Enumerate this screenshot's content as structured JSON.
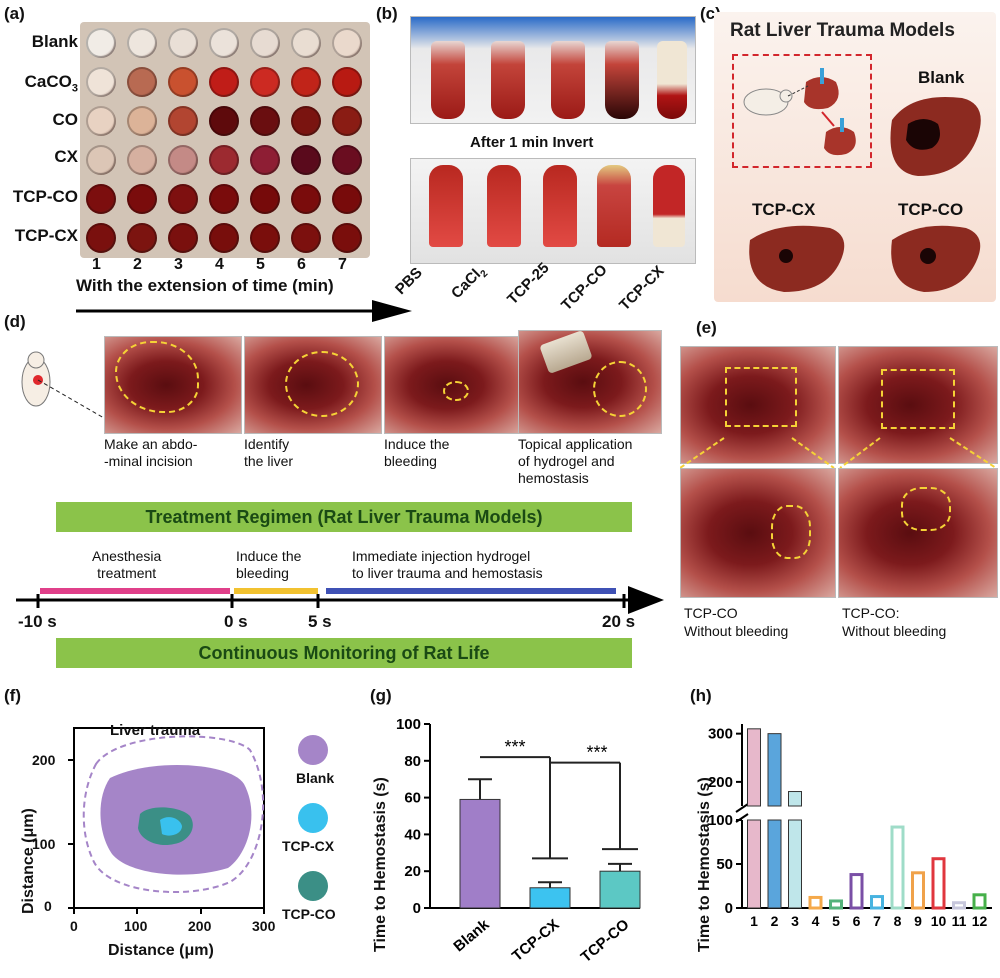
{
  "panel_a": {
    "label": "(a)",
    "row_labels": [
      "Blank",
      "CaCO",
      "CO",
      "CX",
      "TCP-CO",
      "TCP-CX"
    ],
    "subscript_3": "3",
    "column_numbers": [
      "1",
      "2",
      "3",
      "4",
      "5",
      "6",
      "7"
    ],
    "axis_caption": "With the extension of time (min)",
    "well_colors": [
      [
        "#f1ece6",
        "#eee6de",
        "#e9dfd6",
        "#ebe2da",
        "#e7dbd2",
        "#e9ddd2",
        "#ead9cc"
      ],
      [
        "#efe3d8",
        "#b86a52",
        "#c9512f",
        "#c01d18",
        "#cc2a22",
        "#c12419",
        "#b81a12"
      ],
      [
        "#e8d2c2",
        "#dcb398",
        "#b24531",
        "#5e0a0c",
        "#6a0e10",
        "#7a1410",
        "#8a1c14"
      ],
      [
        "#dcc6b6",
        "#d6b0a0",
        "#c48a86",
        "#9c2a30",
        "#8e1e34",
        "#5a0a1c",
        "#6a0d20"
      ],
      [
        "#7c0e0e",
        "#7a0c0c",
        "#7e1010",
        "#7a0c0c",
        "#760a0a",
        "#7a0c0c",
        "#780b0b"
      ],
      [
        "#7a100e",
        "#7c1410",
        "#7a100e",
        "#780e0c",
        "#7a0e0c",
        "#7c100e",
        "#7a0e0c"
      ]
    ]
  },
  "panel_b": {
    "label": "(b)",
    "invert_caption": "After 1 min Invert",
    "tube_labels": [
      "PBS",
      "CaCl",
      "TCP-25",
      "TCP-CO",
      "TCP-CX"
    ],
    "subscript_2": "2"
  },
  "panel_c": {
    "label": "(c)",
    "title": "Rat Liver Trauma Models",
    "liver_labels": [
      "Blank",
      "TCP-CX",
      "TCP-CO"
    ]
  },
  "panel_d": {
    "label": "(d)",
    "step_captions": [
      "Make an abdo-\n-minal incision",
      "Identify\nthe liver",
      "Induce the\nbleeding",
      "Topical application\nof hydrogel and\nhemostasis"
    ],
    "regimen_title": "Treatment Regimen (Rat Liver Trauma Models)",
    "phases": [
      "Anesthesia\ntreatment",
      "Induce the\nbleeding",
      "Immediate injection hydrogel\nto liver trauma and hemostasis"
    ],
    "ticks": [
      "-10 s",
      "0 s",
      "5 s",
      "20 s"
    ],
    "monitor_title": "Continuous Monitoring of Rat Life",
    "phase_colors": [
      "#e0408a",
      "#f2c230",
      "#3f51b5"
    ]
  },
  "panel_e": {
    "label": "(e)",
    "captions": [
      "TCP-CO\nWithout bleeding",
      "TCP-CO:\nWithout bleeding"
    ]
  },
  "panel_f": {
    "label": "(f)",
    "ylabel": "Distance (μm)",
    "xlabel": "Distance (μm)",
    "xticks": [
      "0",
      "100",
      "200",
      "300"
    ],
    "yticks": [
      "0",
      "100",
      "200"
    ],
    "trauma_label": "Liver trauma",
    "legend": [
      "Blank",
      "TCP-CX",
      "TCP-CO"
    ],
    "colors": {
      "blank": "#a585c8",
      "cx": "#39c1ee",
      "co": "#3b8f86"
    }
  },
  "chart_data": [
    {
      "type": "bar",
      "panel": "(g)",
      "title": "",
      "categories": [
        "Blank",
        "TCP-CX",
        "TCP-CO"
      ],
      "values": [
        59,
        11,
        20
      ],
      "errors": [
        11,
        3,
        4
      ],
      "ylabel": "Time to  Hemostasis (s)",
      "ylim": [
        0,
        100
      ],
      "yticks": [
        "0",
        "20",
        "40",
        "60",
        "80",
        "100"
      ],
      "significance": [
        "***",
        "***"
      ],
      "colors": [
        "#a07ec8",
        "#3cc3f0",
        "#5cc8c4"
      ]
    },
    {
      "type": "bar",
      "panel": "(h)",
      "title": "",
      "categories": [
        "1",
        "2",
        "3",
        "4",
        "5",
        "6",
        "7",
        "8",
        "9",
        "10",
        "11",
        "12"
      ],
      "values": [
        310,
        300,
        180,
        12,
        8,
        38,
        13,
        92,
        40,
        56,
        6,
        15
      ],
      "ylabel": "Time to  Hemostasis (s)",
      "axis_break": [
        100,
        150
      ],
      "yticks": [
        "0",
        "50",
        "100",
        "200",
        "300"
      ],
      "colors": [
        "#e7b8cb",
        "#5aa5dc",
        "#bfe6ea",
        "#f5a94a",
        "#55b37b",
        "#7a4fa6",
        "#47b3e0",
        "#9fdcc8",
        "#f0a24a",
        "#e0363e",
        "#c7c7dc",
        "#46b04a"
      ]
    }
  ]
}
